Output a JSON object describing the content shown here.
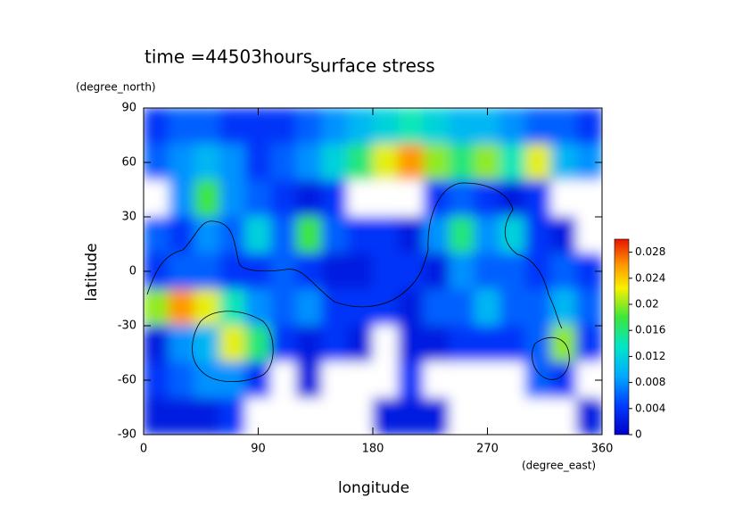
{
  "chart_data": {
    "type": "contour",
    "title": "surface stress",
    "subtitle": "time =44503hours",
    "y_unit": "(degree_north)",
    "x_unit": "(degree_east)",
    "y_label": "latitude",
    "x_label": "longitude",
    "x": [
      10,
      30,
      50,
      70,
      90,
      110,
      130,
      150,
      170,
      190,
      210,
      230,
      250,
      270,
      290,
      310,
      330,
      350
    ],
    "y": [
      80,
      60,
      40,
      20,
      0,
      -20,
      -40,
      -60,
      -80
    ],
    "z": [
      [
        0.004,
        0.006,
        0.006,
        0.004,
        0.004,
        0.004,
        0.006,
        0.008,
        0.01,
        0.012,
        0.014,
        0.012,
        0.01,
        0.01,
        0.008,
        0.006,
        0.006,
        0.004
      ],
      [
        0.006,
        0.008,
        0.01,
        0.008,
        0.004,
        0.006,
        0.008,
        0.012,
        0.016,
        0.022,
        0.026,
        0.02,
        0.016,
        0.02,
        0.014,
        0.022,
        0.01,
        0.008
      ],
      [
        0,
        0.008,
        0.018,
        0.008,
        0.006,
        0.004,
        0.002,
        0.004,
        0,
        0,
        0,
        0.004,
        0.006,
        0.004,
        0.002,
        0.004,
        0,
        0
      ],
      [
        0.006,
        0.004,
        0.008,
        0.006,
        0.012,
        0.006,
        0.018,
        0.006,
        0.004,
        0.004,
        0.002,
        0.008,
        0.016,
        0.008,
        0.012,
        0.004,
        0.002,
        0
      ],
      [
        0.004,
        0.006,
        0.006,
        0.004,
        0.004,
        0.006,
        0.004,
        0.002,
        0.002,
        0.004,
        0.004,
        0.002,
        0.008,
        0.006,
        0.006,
        0.004,
        0.006,
        0.004
      ],
      [
        0.02,
        0.026,
        0.022,
        0.014,
        0.008,
        0.006,
        0.008,
        0.004,
        0.004,
        0.004,
        0.002,
        0.006,
        0.006,
        0.01,
        0.006,
        0.006,
        0.01,
        0.006
      ],
      [
        0.002,
        0.008,
        0.01,
        0.022,
        0.016,
        0.004,
        0.002,
        0.004,
        0.002,
        0,
        0.002,
        0.002,
        0.004,
        0.004,
        0.004,
        0.006,
        0.02,
        0.004
      ],
      [
        0.004,
        0.006,
        0.008,
        0.008,
        0.004,
        0,
        0.002,
        0,
        0,
        0,
        0.004,
        0,
        0,
        0,
        0,
        0.006,
        0.004,
        0
      ],
      [
        0.002,
        0.002,
        0.002,
        0.004,
        0,
        0,
        0,
        0,
        0,
        0.002,
        0.002,
        0.002,
        0,
        0,
        0,
        0,
        0,
        0.002
      ]
    ],
    "xlim": [
      0,
      360
    ],
    "xticks": [
      0,
      90,
      180,
      270,
      360
    ],
    "ylim": [
      -90,
      90
    ],
    "yticks": [
      -90,
      -60,
      -30,
      0,
      30,
      60,
      90
    ],
    "clim": [
      0,
      0.03
    ],
    "cticks": [
      0,
      0.004,
      0.008,
      0.012,
      0.016,
      0.02,
      0.024,
      0.028
    ]
  }
}
